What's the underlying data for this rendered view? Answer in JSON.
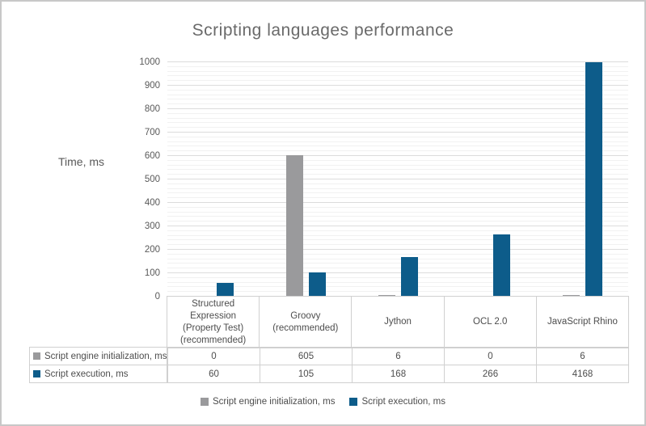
{
  "window": {
    "background": "#ffffff",
    "border_color": "#c8c8c8"
  },
  "chart_data": {
    "type": "bar",
    "title": "Scripting languages performance",
    "ylabel": "Time, ms",
    "xlabel": "",
    "ylim": [
      0,
      1000
    ],
    "y_major_step": 100,
    "y_minor_step": 20,
    "y_tick_labels": [
      "0",
      "100",
      "200",
      "300",
      "400",
      "500",
      "600",
      "700",
      "800",
      "900",
      "1000"
    ],
    "grid": true,
    "legend_position": "bottom",
    "categories": [
      "Structured\nExpression\n(Property Test)\n(recommended)",
      "Groovy\n(recommended)",
      "Jython",
      "OCL 2.0",
      "JavaScript Rhino"
    ],
    "series": [
      {
        "name": "Script engine initialization, ms",
        "color": "#9a9a9c",
        "values": [
          0,
          605,
          6,
          0,
          6
        ]
      },
      {
        "name": "Script execution, ms",
        "color": "#0d5c8a",
        "values": [
          60,
          105,
          168,
          266,
          4168
        ]
      }
    ]
  }
}
